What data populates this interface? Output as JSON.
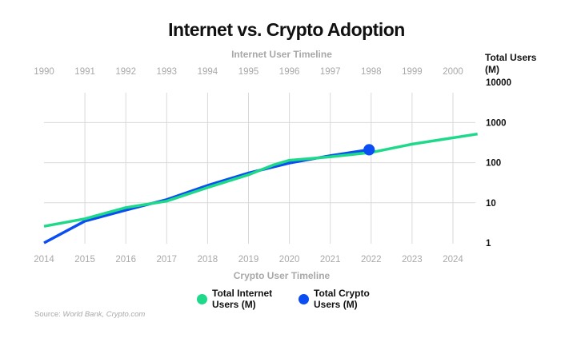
{
  "chart_data": {
    "type": "line",
    "title": "Internet vs. Crypto Adoption",
    "top_axis_label": "Internet User Timeline",
    "bottom_axis_label": "Crypto User Timeline",
    "ylabel": "Total Users (M)",
    "ylabel_lines": [
      "Total Users",
      "(M)"
    ],
    "yscale": "log",
    "ylim": [
      1,
      10000
    ],
    "y_ticks": [
      10000,
      1000,
      100,
      10,
      1
    ],
    "y_tick_labels": [
      "10000",
      "1000",
      "100",
      "10",
      "1"
    ],
    "x_top_ticks": [
      "1990",
      "1991",
      "1992",
      "1993",
      "1994",
      "1995",
      "1996",
      "1997",
      "1998",
      "1999",
      "2000"
    ],
    "x_bottom_ticks": [
      "2014",
      "2015",
      "2016",
      "2017",
      "2018",
      "2019",
      "2020",
      "2021",
      "2022",
      "2023",
      "2024"
    ],
    "xlim": [
      2014,
      2024.6
    ],
    "grid": true,
    "legend_position": "bottom-center",
    "series": [
      {
        "name": "Total Internet Users (M)",
        "label_lines": [
          "Total Internet",
          "Users (M)"
        ],
        "color": "#1ed98a",
        "x": [
          2014,
          2015,
          2016,
          2017,
          2018,
          2019,
          2019.6,
          2020,
          2021,
          2022,
          2023,
          2024.6
        ],
        "y": [
          2.6,
          4,
          7.6,
          11,
          24,
          50,
          87,
          115,
          140,
          180,
          290,
          520
        ]
      },
      {
        "name": "Total Crypto Users (M)",
        "label_lines": [
          "Total Crypto",
          "Users (M)"
        ],
        "color": "#0a4df2",
        "x": [
          2014,
          2015,
          2016,
          2017,
          2018,
          2019,
          2020,
          2021,
          2021.95
        ],
        "y": [
          1,
          3.5,
          6.6,
          12,
          27,
          55,
          98,
          150,
          210
        ],
        "end_marker": true
      }
    ]
  },
  "source": {
    "prefix": "Source: ",
    "text": "World Bank, Crypto.com"
  }
}
